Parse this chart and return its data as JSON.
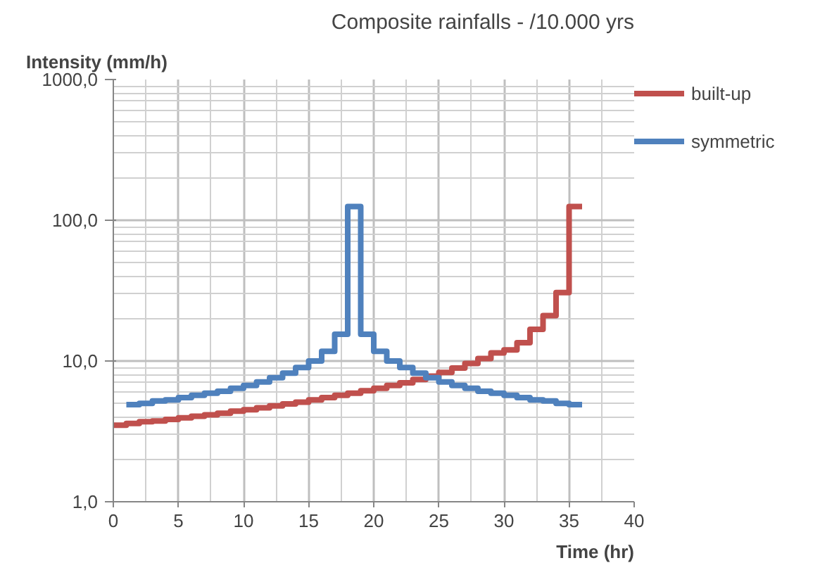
{
  "chart_data": {
    "type": "step",
    "title": "Composite rainfalls - /10.000 yrs",
    "xlabel": "Time (hr)",
    "ylabel": "Intensity (mm/h)",
    "log": "y",
    "grid": true,
    "legend": "top right",
    "line_style": "solid",
    "marker": "none",
    "xlim": [
      0,
      40
    ],
    "xticks": [
      0,
      5,
      10,
      15,
      20,
      25,
      30,
      35,
      40
    ],
    "ylim": [
      1,
      1000
    ],
    "yticks": [
      {
        "value": 1,
        "label": "1,0"
      },
      {
        "value": 10,
        "label": "10,0"
      },
      {
        "value": 100,
        "label": "100,0"
      },
      {
        "value": 1000,
        "label": "1000,0"
      }
    ],
    "series": [
      {
        "name": "built-up",
        "color": "#c0504d",
        "x": [
          0,
          1,
          2,
          3,
          4,
          5,
          6,
          7,
          8,
          9,
          10,
          11,
          12,
          13,
          14,
          15,
          16,
          17,
          18,
          19,
          20,
          21,
          22,
          23,
          24,
          25,
          26,
          27,
          28,
          29,
          30,
          31,
          32,
          33,
          34,
          35,
          36
        ],
        "values": [
          3.5,
          3.6,
          3.7,
          3.75,
          3.85,
          3.95,
          4.05,
          4.15,
          4.25,
          4.4,
          4.5,
          4.65,
          4.8,
          4.95,
          5.1,
          5.3,
          5.5,
          5.7,
          5.9,
          6.15,
          6.4,
          6.7,
          7.0,
          7.4,
          7.8,
          8.3,
          8.9,
          9.6,
          10.4,
          11.4,
          12.0,
          13.5,
          16.8,
          21,
          30.6,
          125,
          125
        ]
      },
      {
        "name": "symmetric",
        "color": "#4f81bd",
        "x": [
          1,
          2,
          3,
          4,
          5,
          6,
          7,
          8,
          9,
          10,
          11,
          12,
          13,
          14,
          15,
          16,
          17,
          18,
          19,
          20,
          21,
          22,
          23,
          24,
          25,
          26,
          27,
          28,
          29,
          30,
          31,
          32,
          33,
          34,
          35,
          36
        ],
        "values": [
          4.9,
          5.0,
          5.2,
          5.3,
          5.5,
          5.7,
          5.9,
          6.1,
          6.4,
          6.7,
          7.1,
          7.6,
          8.2,
          9.0,
          10.0,
          11.7,
          15.5,
          125,
          15.5,
          11.7,
          10.0,
          9.0,
          8.2,
          7.6,
          7.1,
          6.7,
          6.4,
          6.1,
          5.9,
          5.7,
          5.5,
          5.3,
          5.2,
          5.0,
          4.9,
          4.9
        ]
      }
    ]
  }
}
